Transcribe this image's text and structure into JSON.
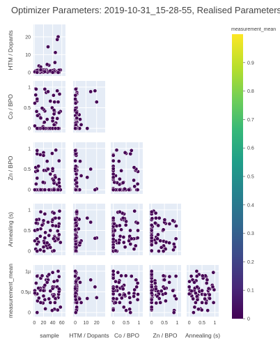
{
  "title": "Optimizer Parameters: 2019-10-31_15-28-55, Realised Parameters Corner Plot",
  "chart_data": {
    "type": "scatter",
    "title": "Optimizer Parameters: 2019-10-31_15-28-55, Realised Parameters Corner Plot",
    "variables": [
      "sample",
      "HTM / Dopants",
      "Co / BPO",
      "Zn / BPO",
      "Annealing (s)",
      "measurement_mean"
    ],
    "row_labels": [
      "HTM / Dopants",
      "Co / BPO",
      "Zn / BPO",
      "Annealing (s)",
      "measurement_mean"
    ],
    "column_labels": [
      "sample",
      "HTM / Dopants",
      "Co / BPO",
      "Zn / BPO",
      "Annealing (s)"
    ],
    "colorbar": {
      "title": "measurement_mean",
      "range": [
        0,
        1
      ],
      "ticks": [
        "0",
        "0.1",
        "0.2",
        "0.3",
        "0.4",
        "0.5",
        "0.6",
        "0.7",
        "0.8",
        "0.9"
      ],
      "colorscale": "viridis"
    },
    "marker_color": "#440154",
    "panel_background": "#e5ecf6",
    "grid": true,
    "axis_ticks": {
      "sample": [
        "0",
        "20",
        "40",
        "60"
      ],
      "HTM / Dopants": [
        "0",
        "10",
        "20"
      ],
      "Co / BPO": [
        "0",
        "0.5",
        "1"
      ],
      "Zn / BPO": [
        "0",
        "0.5",
        "1"
      ],
      "Annealing (s)": [
        "0",
        "0.5",
        "1"
      ],
      "y_HTM / Dopants": [
        "0",
        "10",
        "20"
      ],
      "y_Co / BPO": [
        "0",
        "0.5",
        "1"
      ],
      "y_Zn / BPO": [
        "0",
        "0.5",
        "1"
      ],
      "y_Annealing (s)": [
        "0",
        "0.5",
        "1"
      ],
      "y_measurement_mean": [
        "0",
        "0.5µ",
        "1µ"
      ]
    },
    "ranges": {
      "sample": [
        -2,
        68
      ],
      "HTM / Dopants": [
        -2,
        28
      ],
      "Co / BPO": [
        -0.1,
        1.15
      ],
      "Zn / BPO": [
        -0.1,
        1.15
      ],
      "Annealing (s)": [
        -0.1,
        1.15
      ],
      "measurement_mean": [
        -0.1,
        1.15
      ]
    }
  }
}
